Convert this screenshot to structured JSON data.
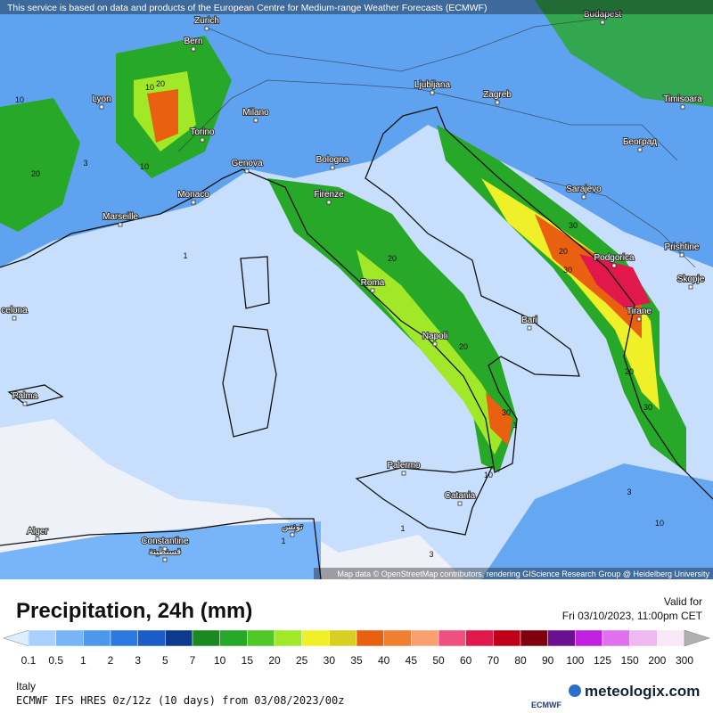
{
  "header": {
    "notice": "This service is based on data and products of the European Centre for Medium-range Weather Forecasts (ECMWF)"
  },
  "map": {
    "cities": [
      "Zurich",
      "Budapest",
      "Bern",
      "Lyon",
      "Ljubljana",
      "Zagreb",
      "Timisoara",
      "Milano",
      "Torino",
      "Београд",
      "Genova",
      "Bologna",
      "Monaco",
      "Firenze",
      "Sarajevo",
      "Marseille",
      "Podgorica",
      "Prishtine",
      "Skopje",
      "Roma",
      "Tirane",
      "Bari",
      "Napoli",
      "Palma",
      "Palermo",
      "Catania",
      "Alger",
      "Constantine",
      "قسنطينة",
      "تونس",
      "celona"
    ],
    "contours": [
      "10",
      "20",
      "10",
      "3",
      "1",
      "10",
      "20",
      "30",
      "20",
      "30",
      "20",
      "30",
      "30",
      "20",
      "20",
      "1",
      "1",
      "3",
      "10",
      "1",
      "3",
      "10"
    ],
    "attribution": "Map data © OpenStreetMap contributors, rendering GIScience Research Group @ Heidelberg University"
  },
  "legend": {
    "title": "Precipitation, 24h (mm)",
    "labels": [
      "0.1",
      "0.5",
      "1",
      "2",
      "3",
      "5",
      "7",
      "10",
      "15",
      "20",
      "25",
      "30",
      "35",
      "40",
      "45",
      "50",
      "60",
      "70",
      "80",
      "90",
      "100",
      "125",
      "150",
      "200",
      "300"
    ],
    "colors": [
      "#a8d0ff",
      "#78b4f8",
      "#4c98ec",
      "#2c7ae0",
      "#1a5cc8",
      "#0c3a8c",
      "#1a8a20",
      "#28a828",
      "#50c828",
      "#a0e828",
      "#f0f028",
      "#d8d020",
      "#e86010",
      "#f08030",
      "#f8a070",
      "#f05080",
      "#e0184c",
      "#c00018",
      "#800010",
      "#6a1090",
      "#c020e0",
      "#e070f0",
      "#f0b8f0",
      "#f8e8f8"
    ],
    "below_color": "#dceeff",
    "above_color": "#b0b0b0"
  },
  "valid": {
    "label": "Valid for",
    "time": "Fri 03/10/2023, 11:00pm CET"
  },
  "footer": {
    "region": "Italy",
    "model": "ECMWF IFS HRES 0z/12z (10 days) from 03/08/2023/00z",
    "logo": "ECMWF",
    "brand": "meteologix.com"
  }
}
